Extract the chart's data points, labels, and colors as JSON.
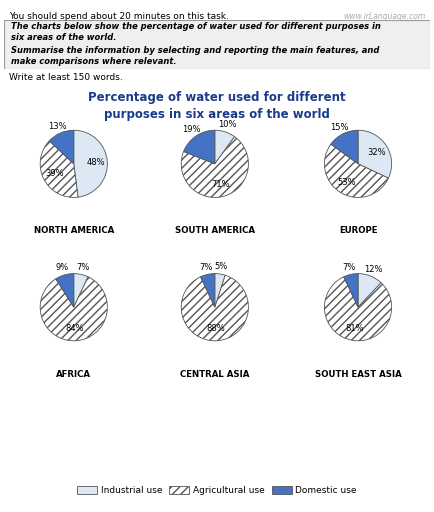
{
  "title": "Percentage of water used for different\npurposes in six areas of the world",
  "title_color": "#1a3a8a",
  "subtext": "Write at least 150 words.",
  "watermark": "www.irLanguage.com",
  "task_text": "You should spend about 20 minutes on this task.",
  "box_text_line1": "The charts below show the percentage of water used for different purposes in",
  "box_text_line2": "six areas of the world.",
  "box_text_line3": "Summarise the information by selecting and reporting the main features, and",
  "box_text_line4": "make comparisons where relevant.",
  "regions": [
    {
      "name": "NORTH AMERICA",
      "industrial": 48,
      "agricultural": 39,
      "domestic": 13
    },
    {
      "name": "SOUTH AMERICA",
      "industrial": 10,
      "agricultural": 71,
      "domestic": 19
    },
    {
      "name": "EUROPE",
      "industrial": 32,
      "agricultural": 53,
      "domestic": 15
    },
    {
      "name": "AFRICA",
      "industrial": 7,
      "agricultural": 84,
      "domestic": 9
    },
    {
      "name": "CENTRAL ASIA",
      "industrial": 5,
      "agricultural": 88,
      "domestic": 7
    },
    {
      "name": "SOUTH EAST ASIA",
      "industrial": 12,
      "agricultural": 81,
      "domestic": 7
    }
  ],
  "colors": {
    "industrial": "#dce9f5",
    "domestic": "#4472c4",
    "agricultural_face": "#ffffff",
    "agricultural_hatch": "////"
  },
  "legend_labels": [
    "Industrial use",
    "Agricultural use",
    "Domestic use"
  ],
  "bg_color": "#ffffff"
}
